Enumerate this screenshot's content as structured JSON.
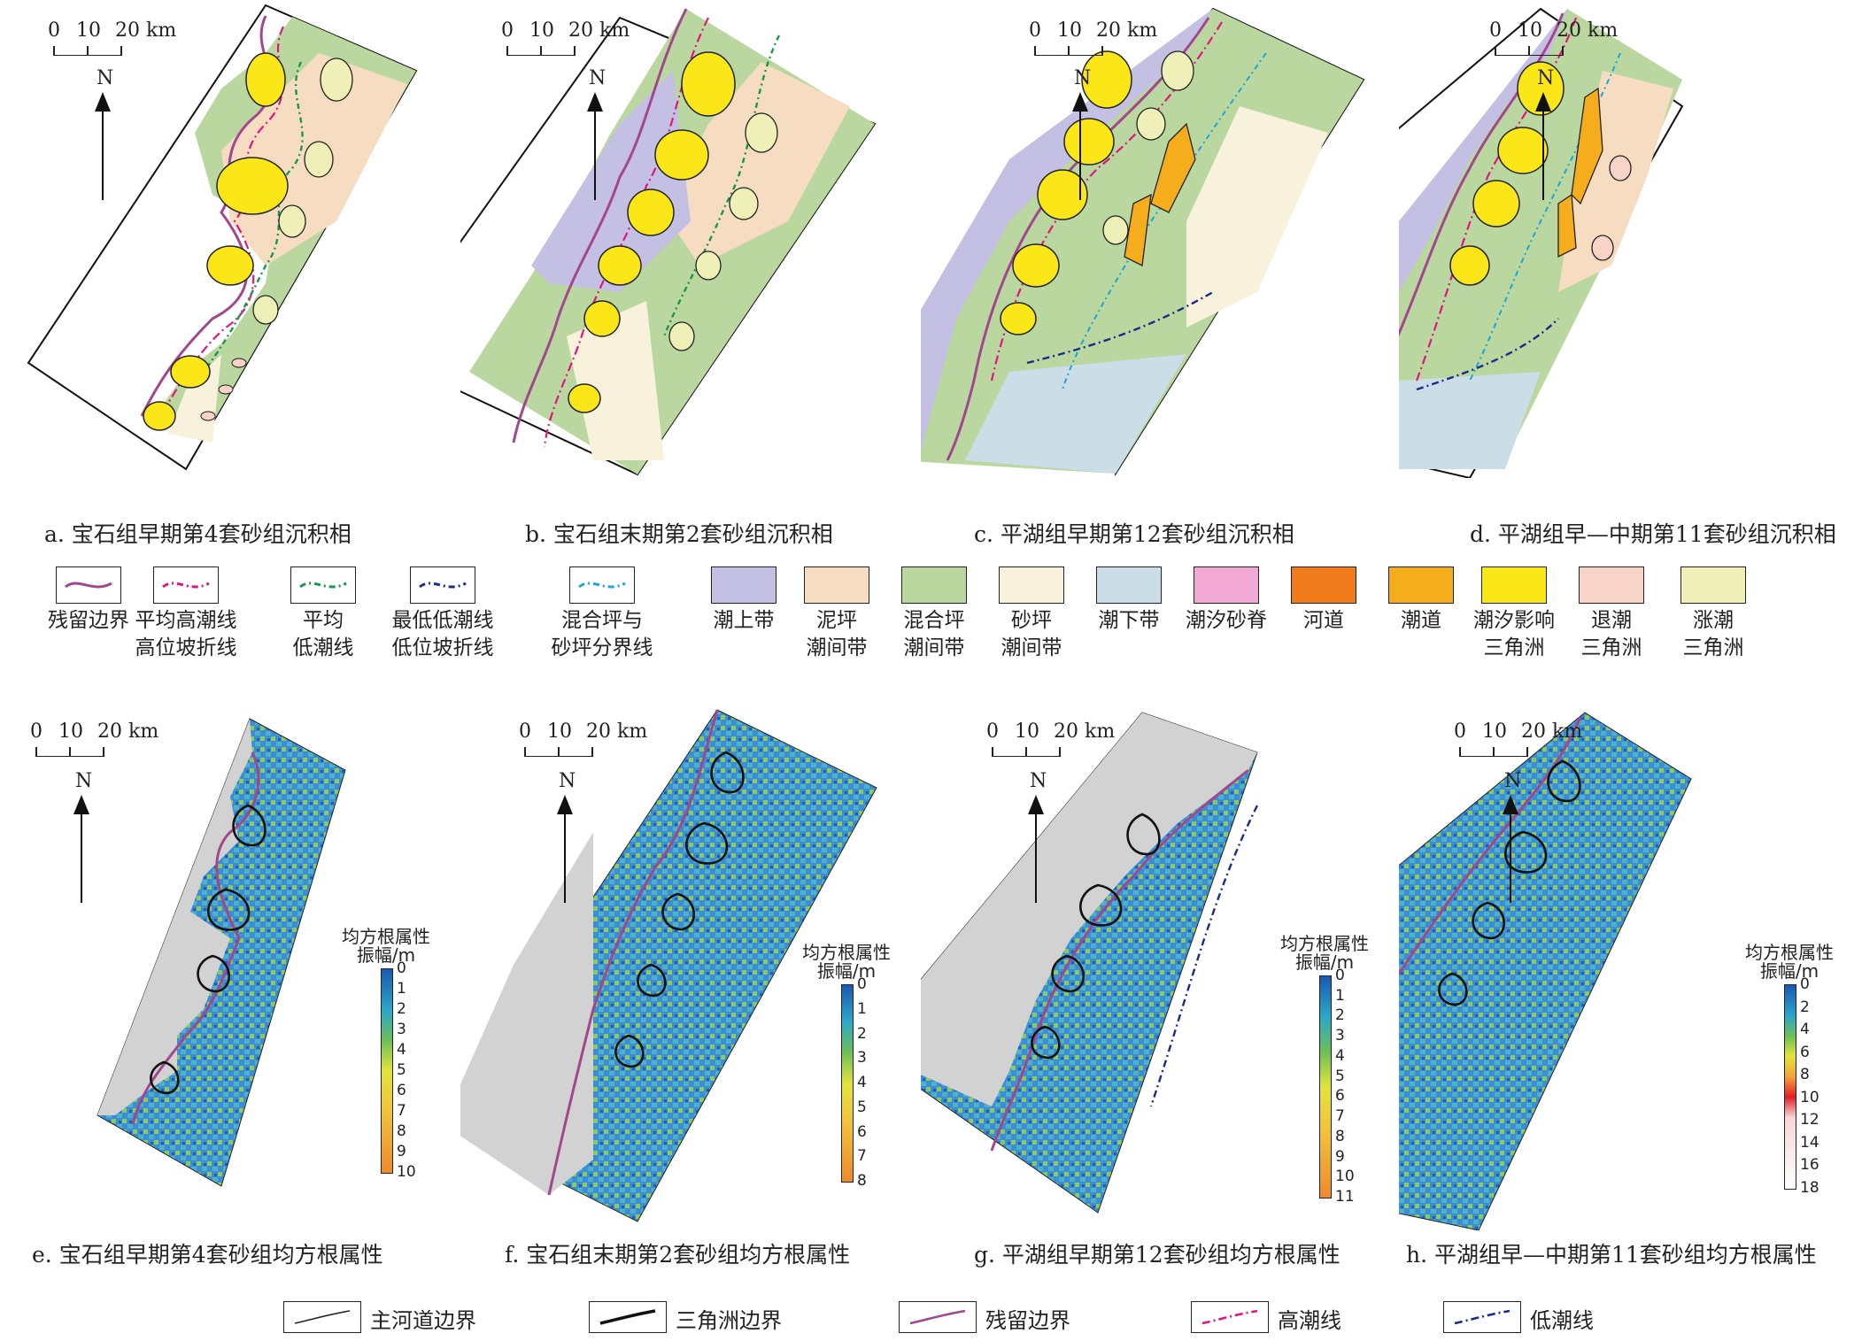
{
  "scale_bar": {
    "labels": [
      "0",
      "10",
      "20 km"
    ]
  },
  "north_label": "N",
  "captions": {
    "a": "a. 宝石组早期第4套砂组沉积相",
    "b": "b. 宝石组末期第2套砂组沉积相",
    "c": "c. 平湖组早期第12套砂组沉积相",
    "d": "d. 平湖组早—中期第11套砂组沉积相",
    "e": "e. 宝石组早期第4套砂组均方根属性",
    "f": "f. 宝石组末期第2套砂组均方根属性",
    "g": "g. 平湖组早期第12套砂组均方根属性",
    "h": "h. 平湖组早—中期第11套砂组均方根属性"
  },
  "facies_legend": [
    {
      "key": "residual",
      "lines": [
        "残留边界"
      ],
      "color": "#a2478e"
    },
    {
      "key": "high_tide",
      "lines": [
        "平均高潮线",
        "高位坡折线"
      ],
      "color": "#e0167f"
    },
    {
      "key": "low_tide",
      "lines": [
        "平均",
        "低潮线"
      ],
      "color": "#16994a"
    },
    {
      "key": "lowest_tide",
      "lines": [
        "最低低潮线",
        "低位坡折线"
      ],
      "color": "#1b2a8c"
    },
    {
      "key": "mixed_sand",
      "lines": [
        "混合坪与",
        "砂坪分界线"
      ],
      "color": "#1aa6dc"
    },
    {
      "key": "supratidal",
      "lines": [
        "潮上带"
      ],
      "color": "#c3c0e3"
    },
    {
      "key": "mud_flat",
      "lines": [
        "泥坪",
        "潮间带"
      ],
      "color": "#f6ddc2"
    },
    {
      "key": "mixed_flat",
      "lines": [
        "混合坪",
        "潮间带"
      ],
      "color": "#b9d79e"
    },
    {
      "key": "sand_flat",
      "lines": [
        "砂坪",
        "潮间带"
      ],
      "color": "#f8f2dc"
    },
    {
      "key": "subtidal",
      "lines": [
        "潮下带"
      ],
      "color": "#cbdde6"
    },
    {
      "key": "sand_ridge",
      "lines": [
        "潮汐砂脊"
      ],
      "color": "#f1a9d4"
    },
    {
      "key": "river_channel",
      "lines": [
        "河道"
      ],
      "color": "#f07b1b"
    },
    {
      "key": "tidal_channel",
      "lines": [
        "潮道"
      ],
      "color": "#f6ad1b"
    },
    {
      "key": "tide_influenced_delta",
      "lines": [
        "潮汐影响",
        "三角洲"
      ],
      "color": "#fbe617"
    },
    {
      "key": "ebb_delta",
      "lines": [
        "退潮",
        "三角洲"
      ],
      "color": "#f8d3c7"
    },
    {
      "key": "flood_delta",
      "lines": [
        "涨潮",
        "三角洲"
      ],
      "color": "#eef0b8"
    }
  ],
  "rms_title": [
    "均方根属性",
    "振幅/m"
  ],
  "colorbars": {
    "e": [
      "0",
      "1",
      "2",
      "3",
      "4",
      "5",
      "6",
      "7",
      "8",
      "9",
      "10"
    ],
    "f": [
      "0",
      "1",
      "2",
      "3",
      "4",
      "5",
      "6",
      "7",
      "8"
    ],
    "g": [
      "0",
      "1",
      "2",
      "3",
      "4",
      "5",
      "6",
      "7",
      "8",
      "9",
      "10",
      "11"
    ],
    "h": [
      "0",
      "2",
      "4",
      "6",
      "8",
      "10",
      "12",
      "14",
      "16",
      "18"
    ]
  },
  "boundary_legend": [
    {
      "key": "main_channel",
      "label": "主河道边界",
      "color": "#222222"
    },
    {
      "key": "delta",
      "label": "三角洲边界",
      "color": "#111111"
    },
    {
      "key": "residual",
      "label": "残留边界",
      "color": "#a2478e"
    },
    {
      "key": "high_tide",
      "label": "高潮线",
      "color": "#e0167f"
    },
    {
      "key": "low_tide",
      "label": "低潮线",
      "color": "#1b2a8c"
    }
  ]
}
